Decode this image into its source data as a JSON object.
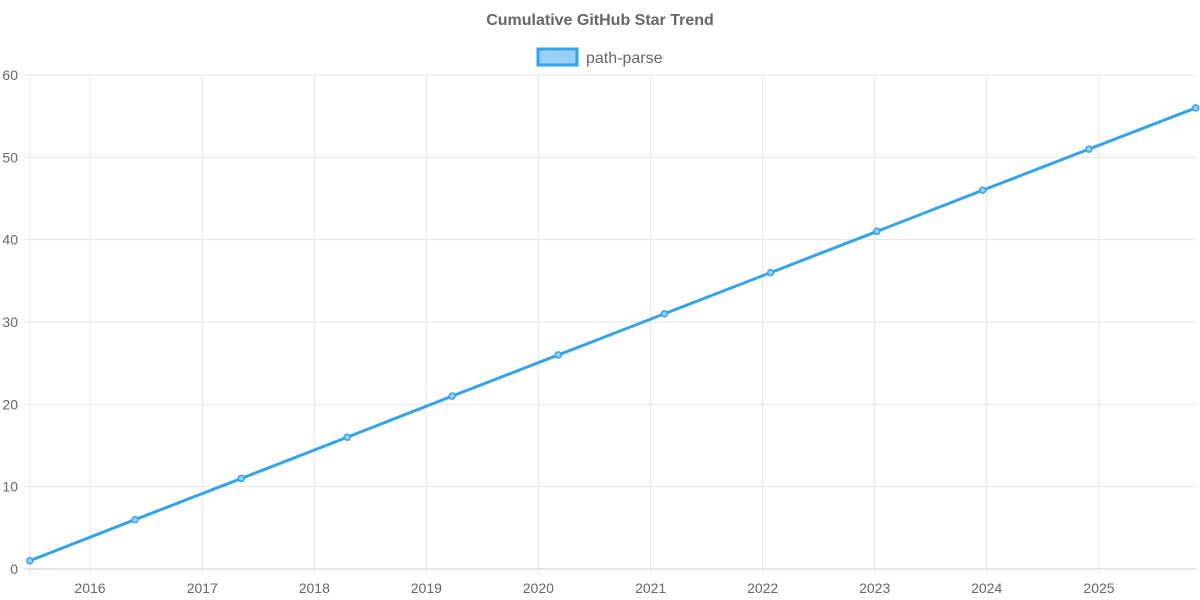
{
  "chart_data": {
    "type": "line",
    "title": "Cumulative GitHub Star Trend",
    "xlabel": "",
    "ylabel": "",
    "legend_position": "top",
    "grid": true,
    "ylim": [
      0,
      60
    ],
    "y_ticks": [
      "0",
      "10",
      "20",
      "30",
      "40",
      "50",
      "60"
    ],
    "x_ticks": [
      "2016",
      "2017",
      "2018",
      "2019",
      "2020",
      "2021",
      "2022",
      "2023",
      "2024",
      "2025"
    ],
    "series": [
      {
        "name": "path-parse",
        "color": "#36a2eb",
        "fill": "#9ad0f5",
        "x": [
          "2015-06-19",
          "2016-05-27",
          "2017-05-08",
          "2018-04-18",
          "2019-03-26",
          "2020-03-06",
          "2021-02-15",
          "2022-01-27",
          "2023-01-08",
          "2023-12-19",
          "2024-11-29",
          "2025-11-12"
        ],
        "values": [
          1,
          6,
          11,
          16,
          21,
          26,
          31,
          36,
          41,
          46,
          51,
          56
        ]
      }
    ]
  }
}
